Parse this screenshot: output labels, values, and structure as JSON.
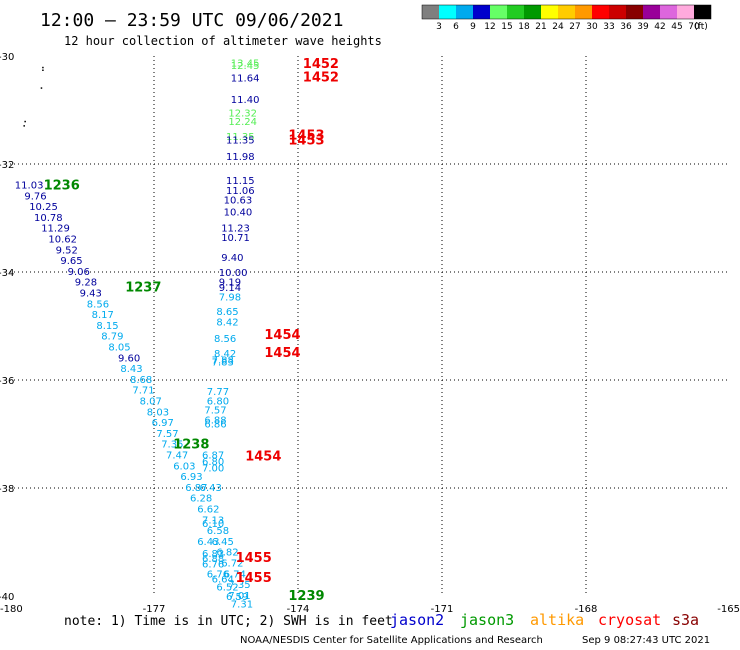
{
  "header": {
    "title": "12:00 — 23:59 UTC 09/06/2021",
    "subtitle": "12 hour collection of altimeter wave heights"
  },
  "legend": {
    "unit": "(ft)",
    "items": [
      {
        "label": "3",
        "color": "#7f7f7f"
      },
      {
        "label": "6",
        "color": "#00ffff"
      },
      {
        "label": "9",
        "color": "#00aaee"
      },
      {
        "label": "12",
        "color": "#0000cc"
      },
      {
        "label": "15",
        "color": "#66ff66"
      },
      {
        "label": "18",
        "color": "#22cc22"
      },
      {
        "label": "21",
        "color": "#009900"
      },
      {
        "label": "24",
        "color": "#ffff00"
      },
      {
        "label": "27",
        "color": "#ffcc00"
      },
      {
        "label": "30",
        "color": "#ff9900"
      },
      {
        "label": "33",
        "color": "#ff0000"
      },
      {
        "label": "36",
        "color": "#cc0000"
      },
      {
        "label": "39",
        "color": "#880000"
      },
      {
        "label": "42",
        "color": "#990099"
      },
      {
        "label": "45",
        "color": "#dd66dd"
      },
      {
        "label": "70",
        "color": "#ffaadd"
      },
      {
        "label": "",
        "color": "#000000"
      }
    ]
  },
  "footer": {
    "note": "note:  1) Time is in UTC; 2) SWH is in feet",
    "satellites": [
      {
        "name": "jason2",
        "color": "#0000cc"
      },
      {
        "name": "jason3",
        "color": "#009900"
      },
      {
        "name": "altika",
        "color": "#ff9900"
      },
      {
        "name": "cryosat",
        "color": "#ff0000"
      },
      {
        "name": "s3a",
        "color": "#880000"
      }
    ],
    "credit": "NOAA/NESDIS Center for Satellite Applications and Research",
    "timestamp": "Sep  9 08:27:43 UTC 2021"
  },
  "chart_data": {
    "type": "scatter",
    "xlim": [
      -180,
      -165
    ],
    "ylim": [
      -40,
      -30
    ],
    "x_ticks": [
      "-180",
      "-177",
      "-174",
      "-171",
      "-168",
      "-165"
    ],
    "y_ticks": [
      "-30",
      "-32",
      "-34",
      "-36",
      "-38",
      "-40"
    ],
    "grid": true,
    "colors": {
      "dark": "#00009c",
      "light": "#00aaee",
      "green": "#55ee55",
      "time_green": "#008800",
      "time_red": "#ee0000"
    },
    "time_labels": [
      {
        "text": "1452",
        "lon": -173.9,
        "lat": -30.13,
        "color": "#ee0000"
      },
      {
        "text": "1452",
        "lon": -173.9,
        "lat": -30.38,
        "color": "#ee0000"
      },
      {
        "text": "1453",
        "lon": -174.2,
        "lat": -31.45,
        "color": "#ee0000"
      },
      {
        "text": "1453",
        "lon": -174.2,
        "lat": -31.55,
        "color": "#ee0000"
      },
      {
        "text": "1236",
        "lon": -179.3,
        "lat": -32.38,
        "color": "#008800"
      },
      {
        "text": "1237",
        "lon": -177.6,
        "lat": -34.27,
        "color": "#008800"
      },
      {
        "text": "1454",
        "lon": -174.7,
        "lat": -35.15,
        "color": "#ee0000"
      },
      {
        "text": "1454",
        "lon": -174.7,
        "lat": -35.48,
        "color": "#ee0000"
      },
      {
        "text": "1238",
        "lon": -176.6,
        "lat": -37.18,
        "color": "#008800"
      },
      {
        "text": "1454",
        "lon": -175.1,
        "lat": -37.4,
        "color": "#ee0000"
      },
      {
        "text": "1455",
        "lon": -175.3,
        "lat": -39.28,
        "color": "#ee0000"
      },
      {
        "text": "1455",
        "lon": -175.3,
        "lat": -39.65,
        "color": "#ee0000"
      },
      {
        "text": "1239",
        "lon": -174.2,
        "lat": -39.98,
        "color": "#008800"
      }
    ],
    "series": [
      {
        "name": "jason3 pass 1236-1239",
        "points": [
          {
            "lon": -179.9,
            "lat": -32.38,
            "swh": "11.03",
            "c": "dark"
          },
          {
            "lon": -179.7,
            "lat": -32.58,
            "swh": "9.76",
            "c": "dark"
          },
          {
            "lon": -179.6,
            "lat": -32.78,
            "swh": "10.25",
            "c": "dark"
          },
          {
            "lon": -179.5,
            "lat": -32.98,
            "swh": "10.78",
            "c": "dark"
          },
          {
            "lon": -179.35,
            "lat": -33.18,
            "swh": "11.29",
            "c": "dark"
          },
          {
            "lon": -179.2,
            "lat": -33.38,
            "swh": "10.62",
            "c": "dark"
          },
          {
            "lon": -179.05,
            "lat": -33.58,
            "swh": "9.52",
            "c": "dark"
          },
          {
            "lon": -178.95,
            "lat": -33.78,
            "swh": "9.65",
            "c": "dark"
          },
          {
            "lon": -178.8,
            "lat": -33.98,
            "swh": "9.06",
            "c": "dark"
          },
          {
            "lon": -178.65,
            "lat": -34.18,
            "swh": "9.28",
            "c": "dark"
          },
          {
            "lon": -178.55,
            "lat": -34.38,
            "swh": "9.43",
            "c": "dark"
          },
          {
            "lon": -178.4,
            "lat": -34.58,
            "swh": "8.56",
            "c": "light"
          },
          {
            "lon": -178.3,
            "lat": -34.78,
            "swh": "8.17",
            "c": "light"
          },
          {
            "lon": -178.2,
            "lat": -34.98,
            "swh": "8.15",
            "c": "light"
          },
          {
            "lon": -178.1,
            "lat": -35.18,
            "swh": "8.79",
            "c": "light"
          },
          {
            "lon": -177.95,
            "lat": -35.38,
            "swh": "8.05",
            "c": "light"
          },
          {
            "lon": -177.75,
            "lat": -35.58,
            "swh": "9.60",
            "c": "dark"
          },
          {
            "lon": -177.7,
            "lat": -35.78,
            "swh": "8.43",
            "c": "light"
          },
          {
            "lon": -177.5,
            "lat": -35.98,
            "swh": "8.68",
            "c": "light"
          },
          {
            "lon": -177.45,
            "lat": -36.18,
            "swh": "7.71",
            "c": "light"
          },
          {
            "lon": -177.3,
            "lat": -36.38,
            "swh": "8.07",
            "c": "light"
          },
          {
            "lon": -177.15,
            "lat": -36.58,
            "swh": "8.03",
            "c": "light"
          },
          {
            "lon": -177.05,
            "lat": -36.78,
            "swh": "6.97",
            "c": "light"
          },
          {
            "lon": -176.95,
            "lat": -36.98,
            "swh": "7.57",
            "c": "light"
          },
          {
            "lon": -176.85,
            "lat": -37.18,
            "swh": "7.35",
            "c": "light"
          },
          {
            "lon": -176.75,
            "lat": -37.38,
            "swh": "7.47",
            "c": "light"
          },
          {
            "lon": -176.6,
            "lat": -37.58,
            "swh": "6.03",
            "c": "light"
          },
          {
            "lon": -176.45,
            "lat": -37.78,
            "swh": "6.93",
            "c": "light"
          },
          {
            "lon": -176.35,
            "lat": -37.98,
            "swh": "6.87",
            "c": "light"
          },
          {
            "lon": -176.25,
            "lat": -38.18,
            "swh": "6.28",
            "c": "light"
          },
          {
            "lon": -176.1,
            "lat": -38.38,
            "swh": "6.62",
            "c": "light"
          },
          {
            "lon": -176.0,
            "lat": -38.58,
            "swh": "7.13",
            "c": "light"
          },
          {
            "lon": -175.9,
            "lat": -38.78,
            "swh": "6.58",
            "c": "light"
          },
          {
            "lon": -175.8,
            "lat": -38.98,
            "swh": "6.45",
            "c": "light"
          },
          {
            "lon": -175.7,
            "lat": -39.18,
            "swh": "6.82",
            "c": "light"
          },
          {
            "lon": -175.6,
            "lat": -39.38,
            "swh": "6.72",
            "c": "light"
          },
          {
            "lon": -175.55,
            "lat": -39.58,
            "swh": "6.74",
            "c": "light"
          },
          {
            "lon": -175.45,
            "lat": -39.78,
            "swh": "7.35",
            "c": "light"
          },
          {
            "lon": -175.45,
            "lat": -39.98,
            "swh": "7.01",
            "c": "light"
          }
        ]
      },
      {
        "name": "cryosat pass 1452-1455",
        "points": [
          {
            "lon": -175.4,
            "lat": -30.12,
            "swh": "13.45",
            "c": "green"
          },
          {
            "lon": -175.4,
            "lat": -30.17,
            "swh": "12.45",
            "c": "green"
          },
          {
            "lon": -175.4,
            "lat": -30.4,
            "swh": "11.64",
            "c": "dark"
          },
          {
            "lon": -175.4,
            "lat": -30.8,
            "swh": "11.40",
            "c": "dark"
          },
          {
            "lon": -175.45,
            "lat": -31.05,
            "swh": "12.32",
            "c": "green"
          },
          {
            "lon": -175.45,
            "lat": -31.2,
            "swh": "12.24",
            "c": "green"
          },
          {
            "lon": -175.5,
            "lat": -31.48,
            "swh": "11.35",
            "c": "green"
          },
          {
            "lon": -175.5,
            "lat": -31.55,
            "swh": "11.35",
            "c": "dark"
          },
          {
            "lon": -175.5,
            "lat": -31.85,
            "swh": "11.98",
            "c": "dark"
          },
          {
            "lon": -175.5,
            "lat": -32.3,
            "swh": "11.15",
            "c": "dark"
          },
          {
            "lon": -175.5,
            "lat": -32.48,
            "swh": "11.06",
            "c": "dark"
          },
          {
            "lon": -175.55,
            "lat": -32.66,
            "swh": "10.63",
            "c": "dark"
          },
          {
            "lon": -175.55,
            "lat": -32.88,
            "swh": "10.40",
            "c": "dark"
          },
          {
            "lon": -175.6,
            "lat": -33.18,
            "swh": "11.23",
            "c": "dark"
          },
          {
            "lon": -175.6,
            "lat": -33.35,
            "swh": "10.71",
            "c": "dark"
          },
          {
            "lon": -175.6,
            "lat": -33.72,
            "swh": "9.40",
            "c": "dark"
          },
          {
            "lon": -175.65,
            "lat": -34.0,
            "swh": "10.00",
            "c": "dark"
          },
          {
            "lon": -175.65,
            "lat": -34.18,
            "swh": "9.19",
            "c": "dark"
          },
          {
            "lon": -175.65,
            "lat": -34.28,
            "swh": "9.14",
            "c": "dark"
          },
          {
            "lon": -175.65,
            "lat": -34.45,
            "swh": "7.98",
            "c": "light"
          },
          {
            "lon": -175.7,
            "lat": -34.72,
            "swh": "8.65",
            "c": "light"
          },
          {
            "lon": -175.7,
            "lat": -34.92,
            "swh": "8.42",
            "c": "light"
          },
          {
            "lon": -175.75,
            "lat": -35.22,
            "swh": "8.56",
            "c": "light"
          },
          {
            "lon": -175.75,
            "lat": -35.5,
            "swh": "8.42",
            "c": "light"
          },
          {
            "lon": -175.8,
            "lat": -35.62,
            "swh": "7.88",
            "c": "light"
          },
          {
            "lon": -175.8,
            "lat": -35.66,
            "swh": "7.83",
            "c": "light"
          },
          {
            "lon": -175.9,
            "lat": -36.2,
            "swh": "7.77",
            "c": "light"
          },
          {
            "lon": -175.9,
            "lat": -36.38,
            "swh": "6.80",
            "c": "light"
          },
          {
            "lon": -175.95,
            "lat": -36.55,
            "swh": "7.57",
            "c": "light"
          },
          {
            "lon": -175.95,
            "lat": -36.73,
            "swh": "6.88",
            "c": "light"
          },
          {
            "lon": -175.95,
            "lat": -36.81,
            "swh": "6.86",
            "c": "light"
          },
          {
            "lon": -176.0,
            "lat": -37.38,
            "swh": "6.87",
            "c": "light"
          },
          {
            "lon": -176.0,
            "lat": -37.5,
            "swh": "6.80",
            "c": "light"
          },
          {
            "lon": -176.0,
            "lat": -37.62,
            "swh": "7.00",
            "c": "light"
          },
          {
            "lon": -176.05,
            "lat": -37.98,
            "swh": "6.43",
            "c": "light"
          },
          {
            "lon": -176.0,
            "lat": -38.65,
            "swh": "6.10",
            "c": "light"
          },
          {
            "lon": -176.1,
            "lat": -38.98,
            "swh": "6.43",
            "c": "light"
          },
          {
            "lon": -176.0,
            "lat": -39.2,
            "swh": "6.83",
            "c": "light"
          },
          {
            "lon": -176.0,
            "lat": -39.3,
            "swh": "6.88",
            "c": "light"
          },
          {
            "lon": -176.0,
            "lat": -39.4,
            "swh": "6.76",
            "c": "light"
          },
          {
            "lon": -175.9,
            "lat": -39.58,
            "swh": "6.76",
            "c": "light"
          },
          {
            "lon": -175.8,
            "lat": -39.68,
            "swh": "6.64",
            "c": "light"
          },
          {
            "lon": -175.7,
            "lat": -39.82,
            "swh": "6.52",
            "c": "light"
          },
          {
            "lon": -175.5,
            "lat": -40.0,
            "swh": "6.59",
            "c": "light"
          },
          {
            "lon": -175.4,
            "lat": -40.14,
            "swh": "7.31",
            "c": "light"
          }
        ]
      }
    ],
    "specks": [
      {
        "lon": -179.33,
        "lat": -30.2
      },
      {
        "lon": -179.33,
        "lat": -30.25
      },
      {
        "lon": -179.36,
        "lat": -30.58
      },
      {
        "lon": -179.7,
        "lat": -31.2
      },
      {
        "lon": -179.72,
        "lat": -31.28
      }
    ]
  }
}
